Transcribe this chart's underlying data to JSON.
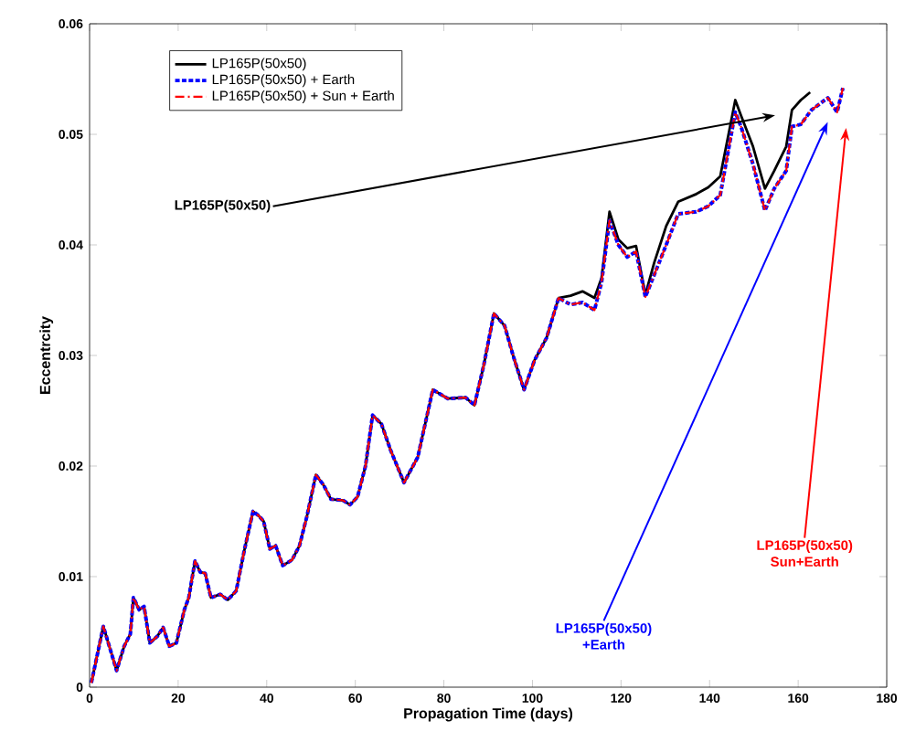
{
  "chart_data": {
    "type": "line",
    "xlabel": "Propagation Time (days)",
    "ylabel": "Eccentrcity",
    "xlim": [
      0,
      180
    ],
    "ylim": [
      0,
      0.06
    ],
    "xticks": [
      0,
      20,
      40,
      60,
      80,
      100,
      120,
      140,
      160,
      180
    ],
    "yticks": [
      0,
      0.01,
      0.02,
      0.03,
      0.04,
      0.05,
      0.06
    ],
    "grid": false,
    "legend": "top left",
    "series": [
      {
        "name": "LP165P(50x50)",
        "color": "#000000",
        "line_style": "solid",
        "x": [
          0.4,
          3.1,
          6.1,
          7.8,
          9.2,
          9.9,
          11.2,
          12.3,
          13.6,
          15.3,
          16.6,
          18.0,
          19.6,
          21.4,
          22.4,
          23.8,
          25.0,
          26.1,
          27.4,
          29.5,
          31.2,
          33.1,
          34.9,
          36.9,
          38.2,
          39.3,
          40.7,
          42.0,
          43.6,
          45.7,
          47.4,
          49.1,
          51.1,
          52.8,
          54.5,
          57.2,
          58.8,
          60.5,
          62.3,
          63.9,
          65.9,
          68.0,
          71.0,
          74.1,
          77.5,
          80.9,
          84.9,
          86.9,
          89.0,
          91.3,
          93.7,
          95.7,
          98.1,
          100.5,
          103.2,
          105.9,
          108.6,
          111.3,
          114.0,
          115.6,
          117.4,
          119.4,
          121.4,
          123.4,
          125.5,
          127.5,
          130.2,
          132.9,
          137.0,
          139.7,
          142.4,
          145.8,
          147.1,
          149.8,
          152.5,
          154.6,
          157.3,
          158.6,
          160.6,
          162.7
        ],
        "values": [
          0.0004,
          0.0055,
          0.0015,
          0.0037,
          0.0048,
          0.0081,
          0.007,
          0.0073,
          0.004,
          0.0046,
          0.0054,
          0.0037,
          0.004,
          0.007,
          0.0081,
          0.0114,
          0.0104,
          0.0103,
          0.0081,
          0.0084,
          0.0079,
          0.0087,
          0.0123,
          0.0159,
          0.0155,
          0.015,
          0.0125,
          0.0128,
          0.011,
          0.0115,
          0.0128,
          0.0155,
          0.0192,
          0.0183,
          0.017,
          0.0169,
          0.0165,
          0.0172,
          0.02,
          0.0246,
          0.0238,
          0.0214,
          0.0185,
          0.0208,
          0.0269,
          0.0261,
          0.0262,
          0.0255,
          0.0291,
          0.0338,
          0.0327,
          0.0299,
          0.0269,
          0.0296,
          0.0316,
          0.0352,
          0.0354,
          0.0358,
          0.0352,
          0.037,
          0.043,
          0.0405,
          0.0397,
          0.0399,
          0.0355,
          0.0384,
          0.0417,
          0.0439,
          0.0446,
          0.0452,
          0.0462,
          0.0531,
          0.0517,
          0.0489,
          0.0451,
          0.0467,
          0.0489,
          0.0522,
          0.0531,
          0.0538
        ]
      },
      {
        "name": "LP165P(50x50) + Earth",
        "color": "#0000ff",
        "line_style": "dashed",
        "x": [
          0.4,
          3.1,
          6.1,
          7.8,
          9.2,
          9.9,
          11.2,
          12.3,
          13.6,
          15.3,
          16.6,
          18.0,
          19.6,
          21.4,
          22.4,
          23.8,
          25.0,
          26.1,
          27.4,
          29.5,
          31.2,
          33.1,
          34.9,
          36.9,
          38.2,
          39.3,
          40.7,
          42.0,
          43.6,
          45.7,
          47.4,
          49.1,
          51.1,
          52.8,
          54.5,
          57.2,
          58.8,
          60.5,
          62.3,
          63.9,
          65.9,
          68.0,
          71.0,
          74.1,
          77.5,
          80.9,
          84.9,
          86.9,
          89.0,
          91.3,
          93.7,
          95.7,
          98.1,
          100.5,
          103.2,
          105.9,
          108.6,
          111.3,
          114.0,
          115.6,
          117.4,
          119.4,
          121.4,
          123.4,
          125.5,
          127.5,
          130.2,
          132.9,
          137.0,
          139.7,
          142.4,
          145.8,
          147.1,
          149.8,
          152.5,
          154.6,
          157.3,
          158.6,
          160.6,
          163.0,
          166.7,
          168.8,
          170.1
        ],
        "values": [
          0.0004,
          0.0055,
          0.0015,
          0.0037,
          0.0048,
          0.0081,
          0.007,
          0.0073,
          0.004,
          0.0046,
          0.0054,
          0.0037,
          0.004,
          0.007,
          0.0081,
          0.0114,
          0.0104,
          0.0103,
          0.0081,
          0.0084,
          0.0079,
          0.0087,
          0.0123,
          0.0159,
          0.0155,
          0.015,
          0.0125,
          0.0128,
          0.011,
          0.0115,
          0.0128,
          0.0155,
          0.0192,
          0.0183,
          0.017,
          0.0169,
          0.0165,
          0.0172,
          0.02,
          0.0246,
          0.0238,
          0.0214,
          0.0185,
          0.0208,
          0.0269,
          0.0261,
          0.0262,
          0.0255,
          0.0291,
          0.0338,
          0.0327,
          0.0299,
          0.0269,
          0.0296,
          0.0316,
          0.0352,
          0.0346,
          0.0348,
          0.0341,
          0.0366,
          0.0422,
          0.04,
          0.0389,
          0.0394,
          0.0353,
          0.0373,
          0.04,
          0.0428,
          0.043,
          0.0435,
          0.0445,
          0.052,
          0.0507,
          0.0473,
          0.0431,
          0.0451,
          0.0467,
          0.0507,
          0.0509,
          0.0522,
          0.0533,
          0.052,
          0.0542
        ]
      },
      {
        "name": "LP165P(50x50) + Sun + Earth",
        "color": "#ff0000",
        "line_style": "dashdot",
        "x": [
          0.4,
          3.1,
          6.1,
          7.8,
          9.2,
          9.9,
          11.2,
          12.3,
          13.6,
          15.3,
          16.6,
          18.0,
          19.6,
          21.4,
          22.4,
          23.8,
          25.0,
          26.1,
          27.4,
          29.5,
          31.2,
          33.1,
          34.9,
          36.9,
          38.2,
          39.3,
          40.7,
          42.0,
          43.6,
          45.7,
          47.4,
          49.1,
          51.1,
          52.8,
          54.5,
          57.2,
          58.8,
          60.5,
          62.3,
          63.9,
          65.9,
          68.0,
          71.0,
          74.1,
          77.5,
          80.9,
          84.9,
          86.9,
          89.0,
          91.3,
          93.7,
          95.7,
          98.1,
          100.5,
          103.2,
          105.9,
          108.6,
          111.3,
          114.0,
          115.6,
          117.4,
          119.4,
          121.4,
          123.4,
          125.5,
          127.5,
          130.2,
          132.9,
          137.0,
          139.7,
          142.4,
          145.8,
          147.1,
          149.8,
          152.5,
          154.6,
          157.3,
          158.6,
          160.6,
          163.0,
          166.7,
          168.8,
          170.1
        ],
        "values": [
          0.0004,
          0.0055,
          0.0015,
          0.0037,
          0.0048,
          0.0081,
          0.007,
          0.0073,
          0.004,
          0.0046,
          0.0054,
          0.0037,
          0.004,
          0.007,
          0.0081,
          0.0114,
          0.0104,
          0.0103,
          0.0081,
          0.0084,
          0.0079,
          0.0087,
          0.0123,
          0.0159,
          0.0155,
          0.015,
          0.0125,
          0.0128,
          0.011,
          0.0115,
          0.0128,
          0.0155,
          0.0192,
          0.0183,
          0.017,
          0.0169,
          0.0165,
          0.0172,
          0.02,
          0.0246,
          0.0238,
          0.0214,
          0.0185,
          0.0208,
          0.0269,
          0.0261,
          0.0262,
          0.0255,
          0.0291,
          0.0338,
          0.0327,
          0.0299,
          0.0269,
          0.0296,
          0.0316,
          0.0352,
          0.0346,
          0.0348,
          0.0341,
          0.0366,
          0.0422,
          0.04,
          0.0389,
          0.0394,
          0.0353,
          0.0373,
          0.04,
          0.0428,
          0.043,
          0.0435,
          0.0445,
          0.052,
          0.0507,
          0.0473,
          0.0431,
          0.0451,
          0.0467,
          0.0507,
          0.0509,
          0.0522,
          0.0533,
          0.052,
          0.0542
        ]
      }
    ],
    "annotations": [
      "LP165P(50x50)",
      "LP165P(50x50) +Earth",
      "LP165P(50x50) Sun+Earth"
    ]
  }
}
